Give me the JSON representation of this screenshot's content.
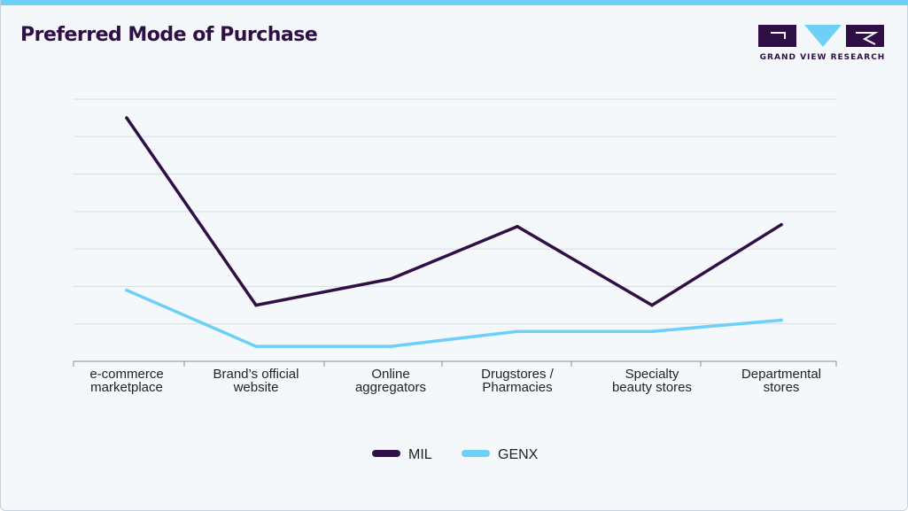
{
  "header": {
    "title": "Preferred Mode of Purchase",
    "logo_text": "GRAND VIEW RESEARCH"
  },
  "colors": {
    "accent": "#6ed0f6",
    "brand": "#2f0f45",
    "grid": "#d5dde3",
    "axis": "#8a8f94",
    "text": "#222222",
    "card": "#f4f8fb"
  },
  "chart_data": {
    "type": "line",
    "title": "Preferred Mode of Purchase",
    "categories": [
      [
        "e-commerce",
        "marketplace"
      ],
      [
        "Brand’s official",
        "website"
      ],
      [
        "Online",
        "aggregators"
      ],
      [
        "Drugstores /",
        "Pharmacies"
      ],
      [
        "Specialty",
        "beauty stores"
      ],
      [
        "Departmental",
        "stores"
      ]
    ],
    "series": [
      {
        "name": "MIL",
        "color": "#2f0f45",
        "values": [
          65,
          15,
          22,
          36,
          15,
          36.5
        ]
      },
      {
        "name": "GENX",
        "color": "#6ed0f6",
        "values": [
          19,
          4,
          4,
          8,
          8,
          11
        ]
      }
    ],
    "ylim": [
      0,
      70
    ],
    "xlabel": "",
    "ylabel": "",
    "grid": true,
    "legend": "bottom-center"
  }
}
